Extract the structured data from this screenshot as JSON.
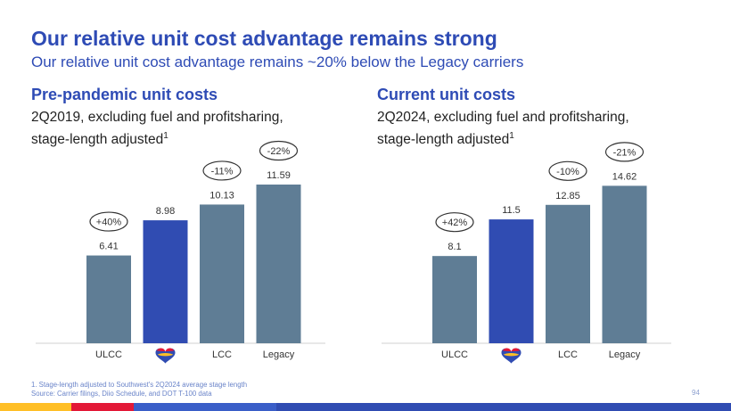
{
  "header": {
    "title": "Our relative unit cost advantage remains strong",
    "subtitle": "Our relative unit cost advantage remains ~20% below the Legacy carriers"
  },
  "panels": [
    {
      "title": "Pre-pandemic unit costs",
      "subtitle_line1": "2Q2019, excluding fuel and profitsharing,",
      "subtitle_line2": "stage-length adjusted",
      "footnote_ref": "1"
    },
    {
      "title": "Current unit costs",
      "subtitle_line1": "2Q2024, excluding fuel and profitsharing,",
      "subtitle_line2": "stage-length adjusted",
      "footnote_ref": "1"
    }
  ],
  "chart_data": [
    {
      "type": "bar",
      "title": "Pre-pandemic unit costs",
      "categories": [
        "ULCC",
        "",
        "LCC",
        "Legacy"
      ],
      "category_icons": [
        null,
        "southwest-heart-logo",
        null,
        null
      ],
      "values": [
        6.41,
        8.98,
        10.13,
        11.59
      ],
      "value_labels": [
        "6.41",
        "8.98",
        "10.13",
        "11.59"
      ],
      "bar_colors": [
        "#5f7d95",
        "#304cb2",
        "#5f7d95",
        "#5f7d95"
      ],
      "callouts": [
        {
          "bar": 0,
          "text": "+40%"
        },
        {
          "bar": 2,
          "text": "-11%"
        },
        {
          "bar": 3,
          "text": "-22%"
        }
      ],
      "ylim": [
        0,
        14
      ],
      "grid": false
    },
    {
      "type": "bar",
      "title": "Current unit costs",
      "categories": [
        "ULCC",
        "",
        "LCC",
        "Legacy"
      ],
      "category_icons": [
        null,
        "southwest-heart-logo",
        null,
        null
      ],
      "values": [
        8.1,
        11.5,
        12.85,
        14.62
      ],
      "value_labels": [
        "8.1",
        "11.5",
        "12.85",
        "14.62"
      ],
      "bar_colors": [
        "#5f7d95",
        "#304cb2",
        "#5f7d95",
        "#5f7d95"
      ],
      "callouts": [
        {
          "bar": 0,
          "text": "+42%"
        },
        {
          "bar": 2,
          "text": "-10%"
        },
        {
          "bar": 3,
          "text": "-21%"
        }
      ],
      "ylim": [
        0,
        17.8
      ],
      "grid": false
    }
  ],
  "footnote": {
    "line1": "1. Stage-length adjusted to Southwest's 2Q2024 average stage length",
    "line2": "Source: Carrier filings, Diio Schedule, and DOT T-100 data"
  },
  "page_number": "94",
  "colors": {
    "brand_blue": "#304cb2",
    "slate_bar": "#5f7d95",
    "heart_red": "#e31837",
    "heart_yellow": "#ffbf27"
  }
}
